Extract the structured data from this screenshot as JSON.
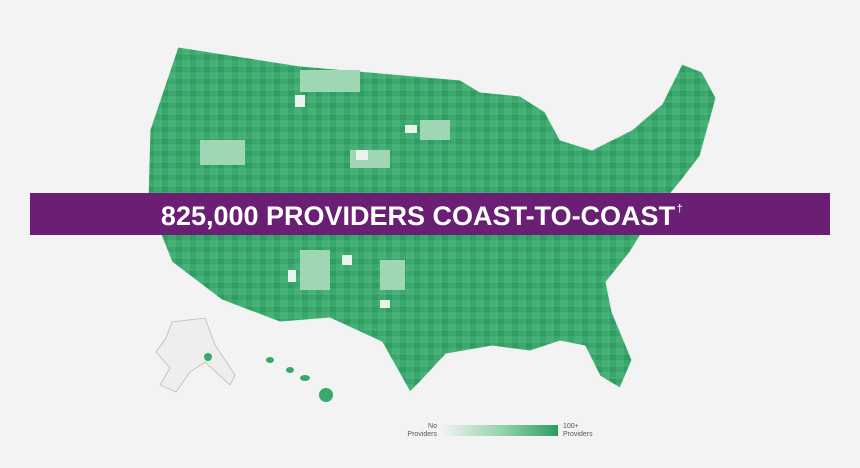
{
  "banner": {
    "text": "825,000 PROVIDERS COAST-TO-COAST",
    "mark": "†"
  },
  "legend": {
    "min_label": [
      "No",
      "Providers"
    ],
    "max_label": [
      "100+",
      "Providers"
    ]
  }
}
